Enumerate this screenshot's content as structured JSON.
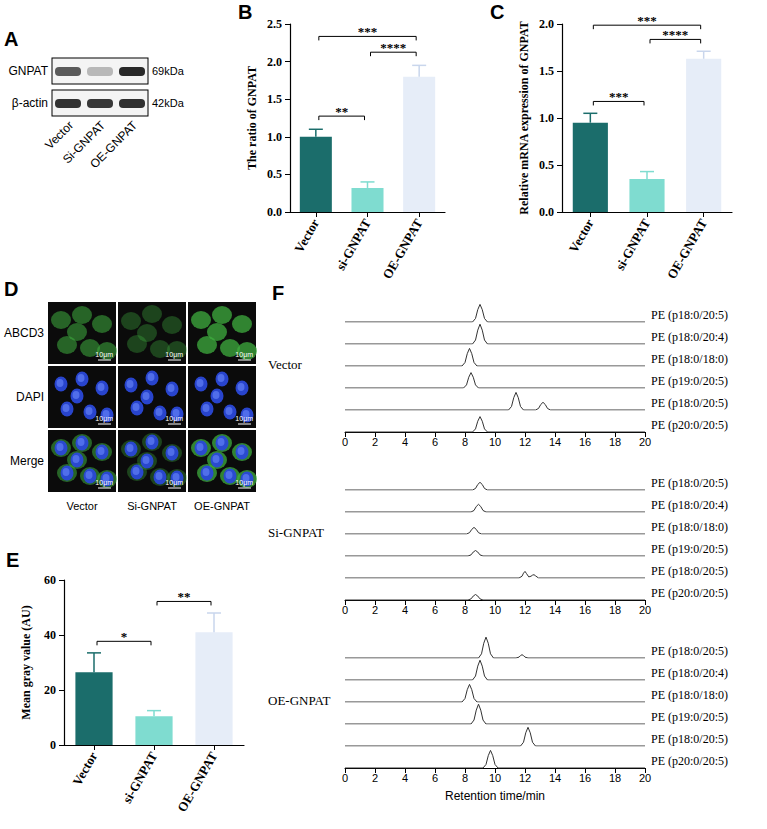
{
  "blot": {
    "panel": "A",
    "rows": [
      {
        "label": "GNPAT",
        "size": "69kDa"
      },
      {
        "label": "β-actin",
        "size": "42kDa"
      }
    ],
    "lanes": [
      "Vector",
      "Si-GNPAT",
      "OE-GNPAT"
    ]
  },
  "images": {
    "panel": "D",
    "rows": [
      "ABCD3",
      "DAPI",
      "Merge"
    ],
    "columns": [
      "Vector",
      "Si-GNPAT",
      "OE-GNPAT"
    ],
    "scale": "10μm"
  },
  "chart_data": [
    {
      "panel": "B",
      "type": "bar",
      "categories": [
        "Vector",
        "si-GNPAT",
        "OE-GNPAT"
      ],
      "values": [
        1.0,
        0.32,
        1.8
      ],
      "errors": [
        0.1,
        0.08,
        0.15
      ],
      "colors": [
        "#1b6d6b",
        "#7fdcd0",
        "#e6edf8"
      ],
      "y_label": "The ratio of GNPAT",
      "ylim": [
        0,
        2.5
      ],
      "yticks": [
        {
          "value": 0,
          "label": "0.0"
        },
        {
          "value": 0.5,
          "label": "0.5"
        },
        {
          "value": 1,
          "label": "1.0"
        },
        {
          "value": 1.5,
          "label": "1.5"
        },
        {
          "value": 2,
          "label": "2.0"
        },
        {
          "value": 2.5,
          "label": "2.5"
        }
      ],
      "grid": false,
      "comparisons": [
        {
          "from": 0,
          "to": 1,
          "label": "**"
        },
        {
          "from": 1,
          "to": 2,
          "label": "****"
        },
        {
          "from": 0,
          "to": 2,
          "label": "***"
        }
      ]
    },
    {
      "panel": "C",
      "type": "bar",
      "categories": [
        "Vector",
        "si-GNPAT",
        "OE-GNPAT"
      ],
      "values": [
        0.95,
        0.35,
        1.63
      ],
      "errors": [
        0.1,
        0.08,
        0.08
      ],
      "colors": [
        "#1b6d6b",
        "#7fdcd0",
        "#e6edf8"
      ],
      "y_label": "Relative mRNA expression of GNPAT",
      "ylim": [
        0,
        2
      ],
      "yticks": [
        {
          "value": 0,
          "label": "0.0"
        },
        {
          "value": 0.5,
          "label": "0.5"
        },
        {
          "value": 1,
          "label": "1.0"
        },
        {
          "value": 1.5,
          "label": "1.5"
        },
        {
          "value": 2,
          "label": "2.0"
        }
      ],
      "grid": false,
      "comparisons": [
        {
          "from": 0,
          "to": 1,
          "label": "***"
        },
        {
          "from": 1,
          "to": 2,
          "label": "****"
        },
        {
          "from": 0,
          "to": 2,
          "label": "***"
        }
      ]
    },
    {
      "panel": "E",
      "type": "bar",
      "categories": [
        "Vector",
        "si-GNPAT",
        "OE-GNPAT"
      ],
      "values": [
        26.5,
        10.5,
        41
      ],
      "errors": [
        7,
        2,
        7
      ],
      "colors": [
        "#1b6d6b",
        "#7fdcd0",
        "#e6edf8"
      ],
      "y_label": "Mean gray value (AU)",
      "ylim": [
        0,
        60
      ],
      "yticks": [
        0,
        20,
        40,
        60
      ],
      "grid": false,
      "comparisons": [
        {
          "from": 0,
          "to": 1,
          "label": "*"
        },
        {
          "from": 1,
          "to": 2,
          "label": "**"
        }
      ]
    },
    {
      "panel": "F",
      "type": "line",
      "x_label": "Retention time/min",
      "xlim": [
        0,
        20
      ],
      "xticks": [
        0,
        2,
        4,
        6,
        8,
        10,
        12,
        14,
        16,
        18,
        20
      ],
      "ylim": [
        0,
        1
      ],
      "tick_labels": "x",
      "grid": false,
      "color": "#333333",
      "groups": [
        {
          "name": "Vector",
          "traces": [
            {
              "name": "PE (p18:0/20:5)",
              "x": [
                0,
                8.5,
                8.7,
                8.85,
                9,
                9.15,
                9.3,
                9.5,
                20
              ],
              "values": [
                0,
                0,
                0.16,
                0.56,
                0.8,
                0.56,
                0.16,
                0,
                0
              ]
            },
            {
              "name": "PE (p18:0/20:4)",
              "x": [
                0,
                8.5,
                8.7,
                8.85,
                9,
                9.15,
                9.3,
                9.5,
                20
              ],
              "values": [
                0,
                0,
                0.18,
                0.63,
                0.9,
                0.63,
                0.18,
                0,
                0
              ]
            },
            {
              "name": "PE (p18:0/18:0)",
              "x": [
                0,
                7.8,
                8,
                8.15,
                8.3,
                8.45,
                8.6,
                8.8,
                20
              ],
              "values": [
                0,
                0,
                0.16,
                0.56,
                0.8,
                0.56,
                0.16,
                0,
                0
              ]
            },
            {
              "name": "PE (p19:0/20:5)",
              "x": [
                0,
                7.9,
                8.1,
                8.25,
                8.4,
                8.55,
                8.7,
                8.9,
                20
              ],
              "values": [
                0,
                0,
                0.14,
                0.49,
                0.7,
                0.49,
                0.14,
                0,
                0
              ]
            },
            {
              "name": "PE (p18:0/20:5)",
              "x": [
                0,
                10.9,
                11.1,
                11.25,
                11.4,
                11.55,
                11.7,
                11.9,
                12.7,
                12.9,
                13.05,
                13.2,
                13.35,
                13.5,
                13.7,
                20
              ],
              "values": [
                0,
                0,
                0.16,
                0.56,
                0.8,
                0.56,
                0.16,
                0,
                0,
                0.07,
                0.25,
                0.35,
                0.25,
                0.07,
                0,
                0
              ]
            },
            {
              "name": "PE (p20:0/20:5)",
              "x": [
                0,
                8.5,
                8.7,
                8.85,
                9,
                9.15,
                9.3,
                9.5,
                20
              ],
              "values": [
                0,
                0,
                0.14,
                0.49,
                0.7,
                0.49,
                0.14,
                0,
                0
              ]
            }
          ]
        },
        {
          "name": "Si-GNPAT",
          "traces": [
            {
              "name": "PE (p18:0/20:5)",
              "x": [
                0,
                8.5,
                8.7,
                8.85,
                9,
                9.15,
                9.3,
                9.5,
                20
              ],
              "values": [
                0,
                0,
                0.07,
                0.25,
                0.35,
                0.25,
                0.07,
                0,
                0
              ]
            },
            {
              "name": "PE (p18:0/20:4)",
              "x": [
                0,
                8.4,
                8.6,
                8.75,
                8.9,
                9.05,
                9.2,
                9.4,
                20
              ],
              "values": [
                0,
                0,
                0.07,
                0.25,
                0.35,
                0.25,
                0.07,
                0,
                0
              ]
            },
            {
              "name": "PE (p18:0/18:0)",
              "x": [
                0,
                8.1,
                8.3,
                8.45,
                8.6,
                8.75,
                8.9,
                9.1,
                20
              ],
              "values": [
                0,
                0,
                0.06,
                0.21,
                0.3,
                0.21,
                0.06,
                0,
                0
              ]
            },
            {
              "name": "PE (p19:0/20:5)",
              "x": [
                0,
                8.2,
                8.4,
                8.55,
                8.7,
                8.85,
                9,
                9.2,
                20
              ],
              "values": [
                0,
                0,
                0.05,
                0.18,
                0.25,
                0.18,
                0.05,
                0,
                0
              ]
            },
            {
              "name": "PE (p18:0/20:5)",
              "x": [
                0,
                11.6,
                11.8,
                11.9,
                12,
                12.1,
                12.25,
                12.4,
                12.5,
                12.6,
                12.7,
                12.9,
                20
              ],
              "values": [
                0,
                0,
                0.08,
                0.22,
                0.3,
                0.2,
                0.05,
                0.08,
                0.13,
                0.15,
                0.1,
                0,
                0
              ]
            },
            {
              "name": "PE (p20:0/20:5)",
              "x": [
                0,
                8.2,
                8.4,
                8.55,
                8.7,
                8.85,
                9,
                9.2,
                20
              ],
              "values": [
                0,
                0,
                0.05,
                0.18,
                0.25,
                0.18,
                0.05,
                0,
                0
              ]
            }
          ]
        },
        {
          "name": "OE-GNPAT",
          "traces": [
            {
              "name": "PE (p18:0/20:5)",
              "x": [
                0,
                8.9,
                9.1,
                9.25,
                9.4,
                9.55,
                9.7,
                9.9,
                11.4,
                11.6,
                11.7,
                11.8,
                11.9,
                12,
                12.2,
                20
              ],
              "values": [
                0,
                0,
                0.19,
                0.67,
                0.95,
                0.67,
                0.19,
                0,
                0,
                0.04,
                0.11,
                0.15,
                0.11,
                0.04,
                0,
                0
              ]
            },
            {
              "name": "PE (p18:0/20:4)",
              "x": [
                0,
                8.5,
                8.7,
                8.85,
                9,
                9.15,
                9.3,
                9.5,
                20
              ],
              "values": [
                0,
                0,
                0.18,
                0.63,
                0.9,
                0.63,
                0.18,
                0,
                0
              ]
            },
            {
              "name": "PE (p18:0/18:0)",
              "x": [
                0,
                7.8,
                8,
                8.15,
                8.3,
                8.45,
                8.6,
                8.8,
                20
              ],
              "values": [
                0,
                0,
                0.16,
                0.56,
                0.8,
                0.56,
                0.16,
                0,
                0
              ]
            },
            {
              "name": "PE (p19:0/20:5)",
              "x": [
                0,
                8.4,
                8.6,
                8.75,
                8.9,
                9.05,
                9.2,
                9.4,
                20
              ],
              "values": [
                0,
                0,
                0.18,
                0.63,
                0.9,
                0.63,
                0.18,
                0,
                0
              ]
            },
            {
              "name": "PE (p18:0/20:5)",
              "x": [
                0,
                11.7,
                11.9,
                12.05,
                12.2,
                12.35,
                12.5,
                12.7,
                20
              ],
              "values": [
                0,
                0,
                0.17,
                0.6,
                0.85,
                0.6,
                0.17,
                0,
                0
              ]
            },
            {
              "name": "PE (p20:0/20:5)",
              "x": [
                0,
                9.2,
                9.4,
                9.55,
                9.7,
                9.85,
                10,
                10.2,
                20
              ],
              "values": [
                0,
                0,
                0.16,
                0.56,
                0.8,
                0.56,
                0.16,
                0,
                0
              ]
            }
          ]
        }
      ]
    }
  ]
}
